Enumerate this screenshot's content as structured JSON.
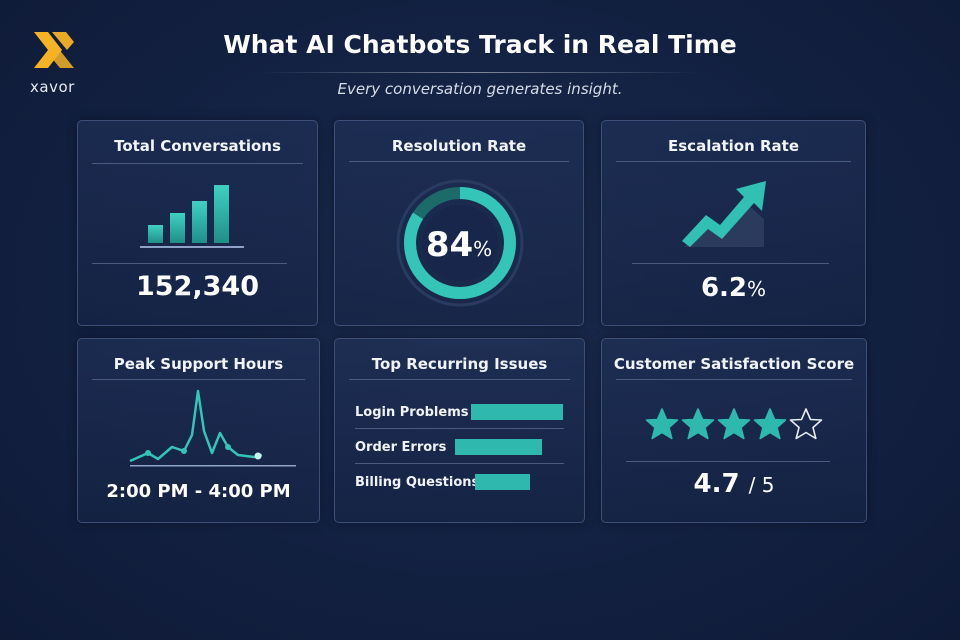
{
  "brand": {
    "name": "xavor",
    "accent": "#f5b324"
  },
  "header": {
    "title": "What AI Chatbots Track in Real Time",
    "subtitle": "Every conversation generates insight."
  },
  "colors": {
    "teal": "#2fb8ad",
    "teal_dark": "#1a7f7a",
    "background": "#142244",
    "card_border": "#3d4f78"
  },
  "cards": {
    "total_conversations": {
      "title": "Total Conversations",
      "value": "152,340",
      "icon": "bar-chart-icon"
    },
    "resolution_rate": {
      "title": "Resolution Rate",
      "value": "84",
      "unit": "%",
      "fraction": 0.84
    },
    "escalation_rate": {
      "title": "Escalation Rate",
      "value": "6.2",
      "unit": "%",
      "icon": "trend-up-arrow-icon"
    },
    "peak_support_hours": {
      "title": "Peak Support Hours",
      "value": "2:00 PM - 4:00 PM",
      "icon": "line-spike-icon"
    },
    "top_recurring_issues": {
      "title": "Top Recurring Issues",
      "items": [
        {
          "label": "Login Problems",
          "fraction": 1.0
        },
        {
          "label": "Order Errors",
          "fraction": 0.95
        },
        {
          "label": "Billing Questions",
          "fraction": 0.6
        }
      ]
    },
    "customer_satisfaction": {
      "title": "Customer Satisfaction Score",
      "score": "4.7",
      "max": "/ 5",
      "stars_filled": 4,
      "stars_total": 5
    }
  }
}
